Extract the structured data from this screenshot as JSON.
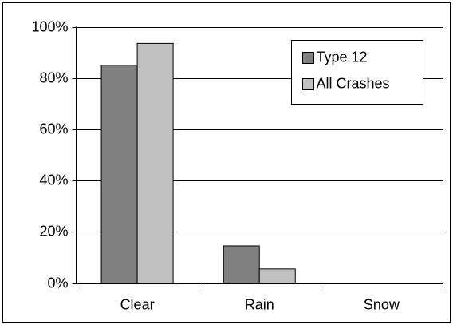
{
  "chart_data": {
    "type": "bar",
    "categories": [
      "Clear",
      "Rain",
      "Snow"
    ],
    "series": [
      {
        "name": "Type 12",
        "color": "#808080",
        "values": [
          85,
          14.5,
          0
        ]
      },
      {
        "name": "All Crashes",
        "color": "#c0c0c0",
        "values": [
          93.5,
          5.5,
          0
        ]
      }
    ],
    "ylim": [
      0,
      100
    ],
    "yticks": [
      {
        "value": 0,
        "label": "0%"
      },
      {
        "value": 20,
        "label": "20%"
      },
      {
        "value": 40,
        "label": "40%"
      },
      {
        "value": 60,
        "label": "60%"
      },
      {
        "value": 80,
        "label": "80%"
      },
      {
        "value": 100,
        "label": "100%"
      }
    ],
    "grid": true,
    "legend": "top-right"
  }
}
